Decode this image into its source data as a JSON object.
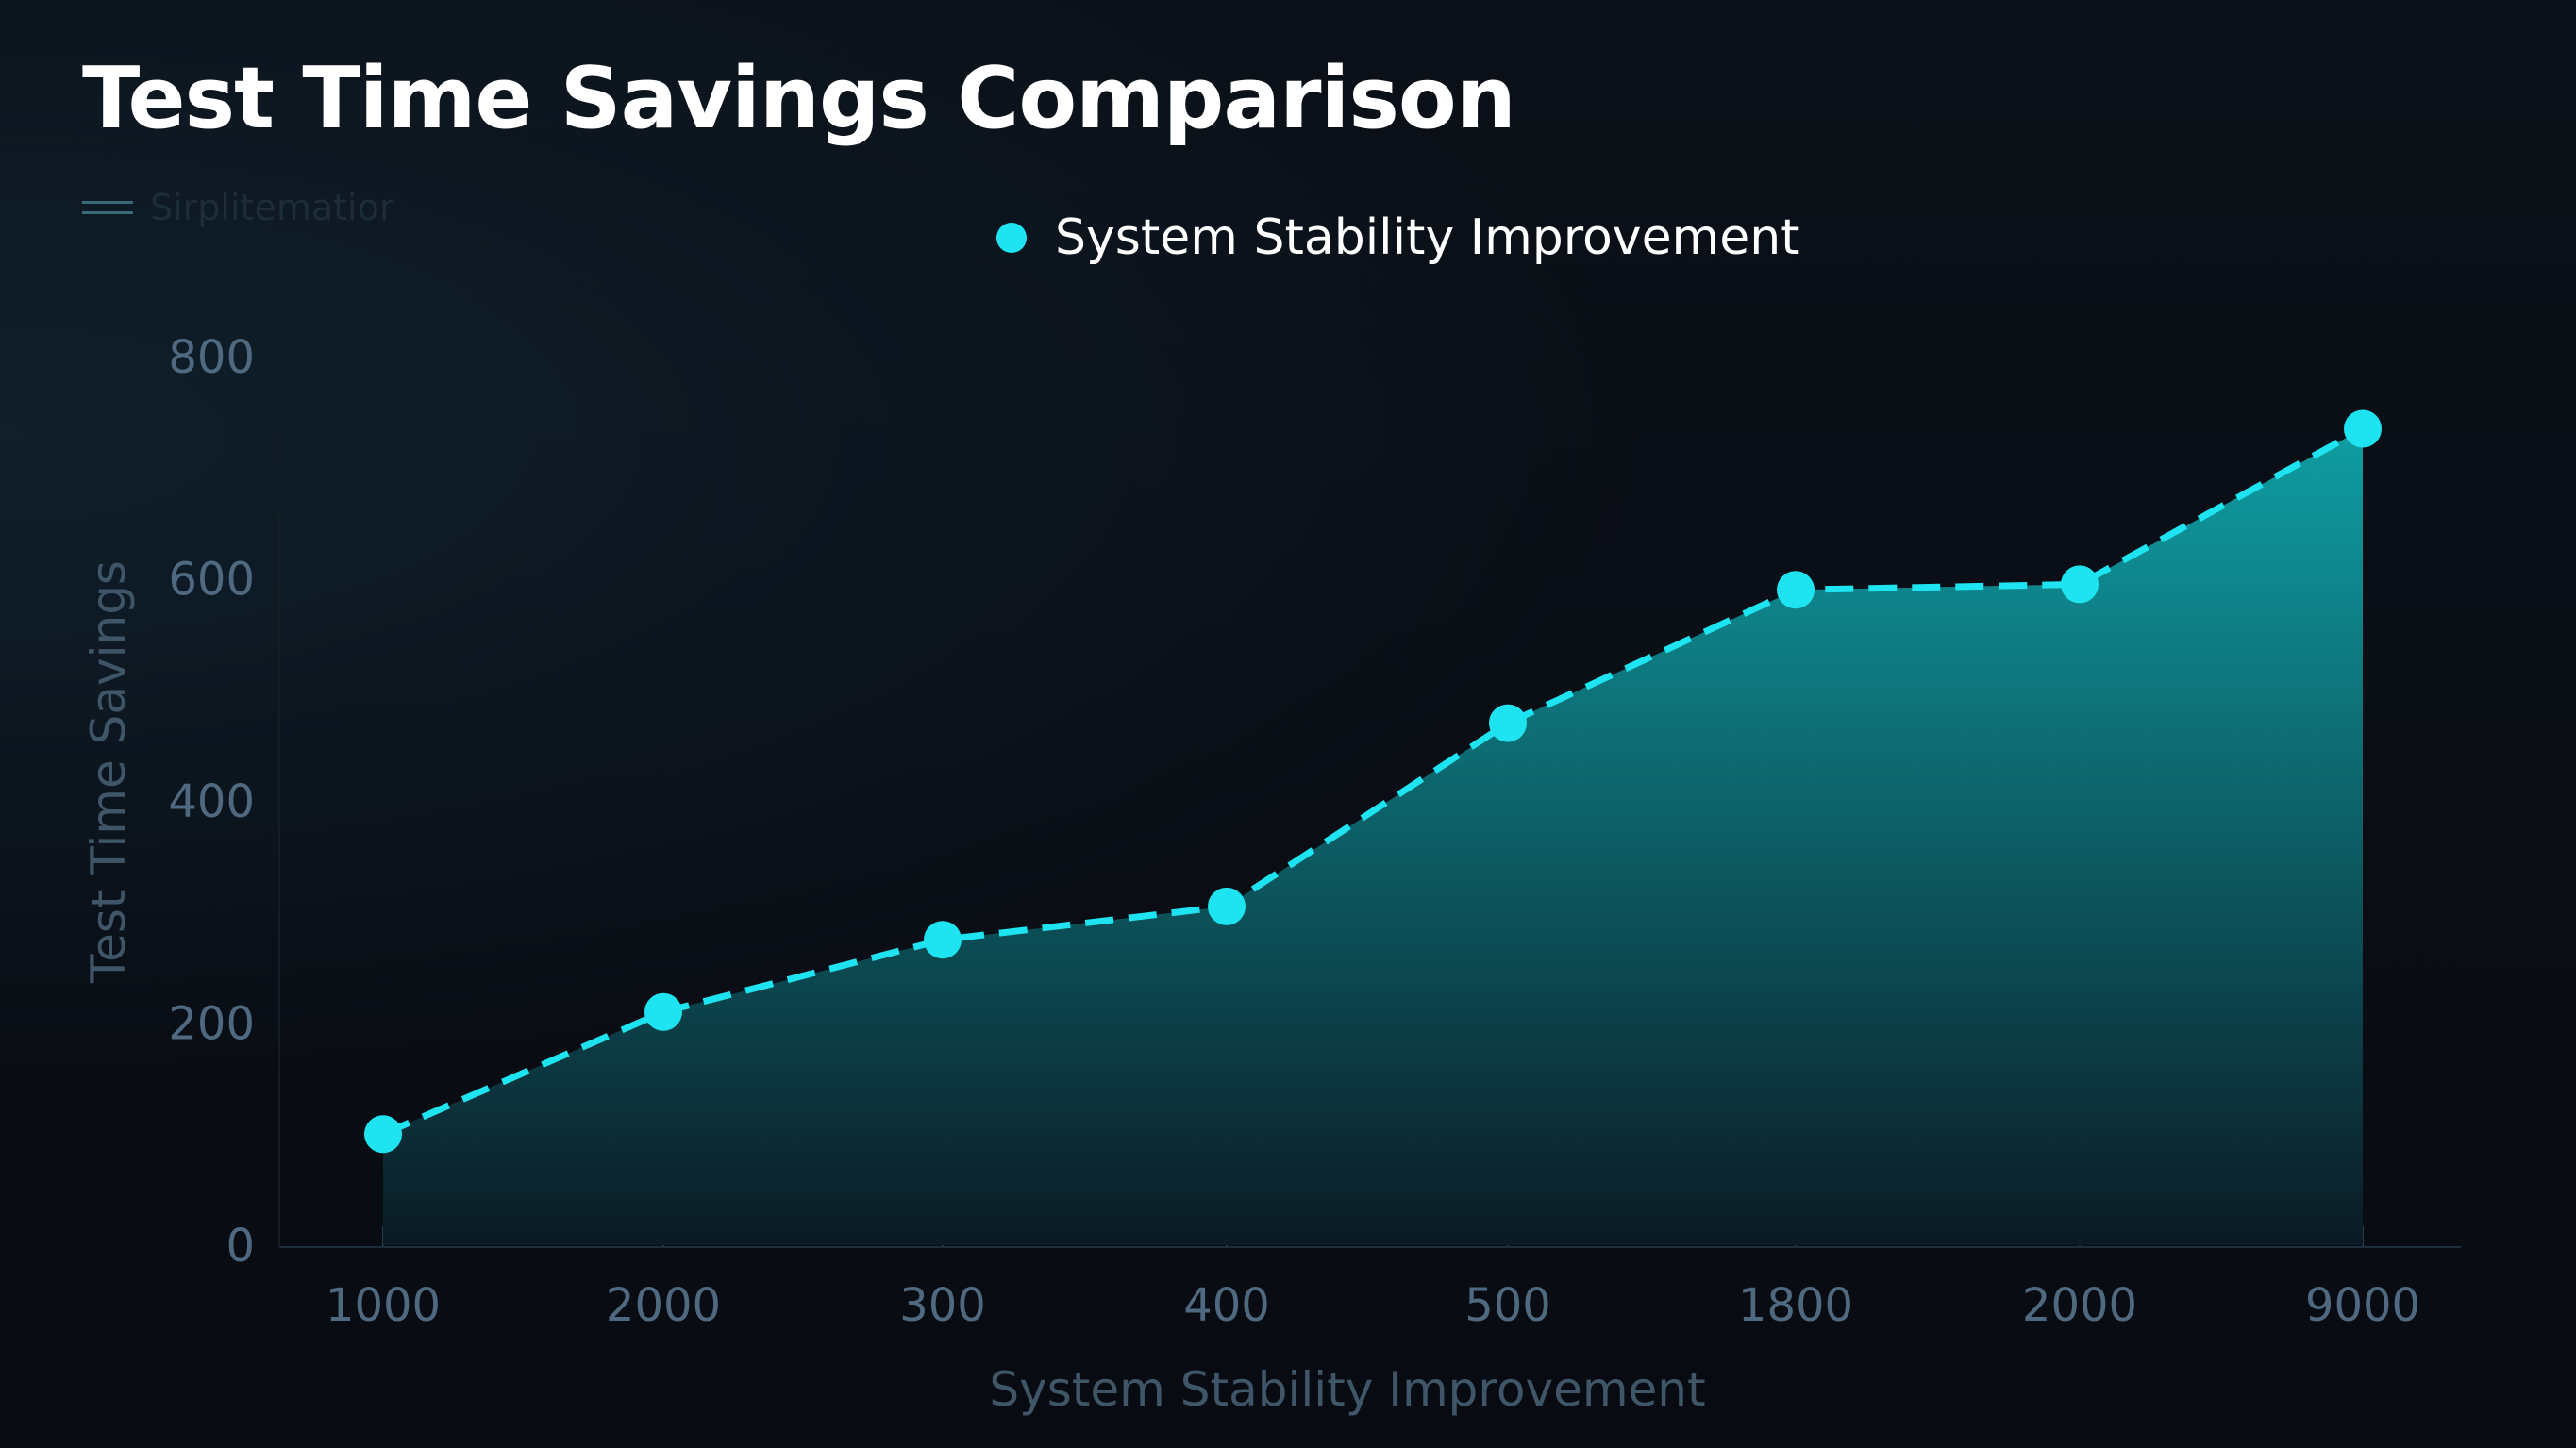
{
  "chart_data": {
    "type": "area",
    "title": "Test Time Savings Comparison",
    "xlabel": "System Stability Improvement",
    "ylabel": "Test Time Savings",
    "categories": [
      "1000",
      "2000",
      "300",
      "400",
      "500",
      "1800",
      "2000",
      "9000"
    ],
    "series": [
      {
        "name": "System Stability Improvement",
        "values": [
          100,
          210,
          275,
          305,
          470,
          590,
          595,
          735
        ]
      }
    ],
    "faint_legend_label": "Sirplitematior",
    "yticks": [
      "0",
      "200",
      "400",
      "600",
      "800"
    ],
    "ylim": [
      0,
      800
    ],
    "grid": false,
    "legend_position": "top-center",
    "line_style": "dashed",
    "colors": {
      "line": "#1ee3f0",
      "fill_top": "#0fa5aa",
      "fill_bottom": "#0b1a24",
      "background": "#0a0d14"
    }
  }
}
